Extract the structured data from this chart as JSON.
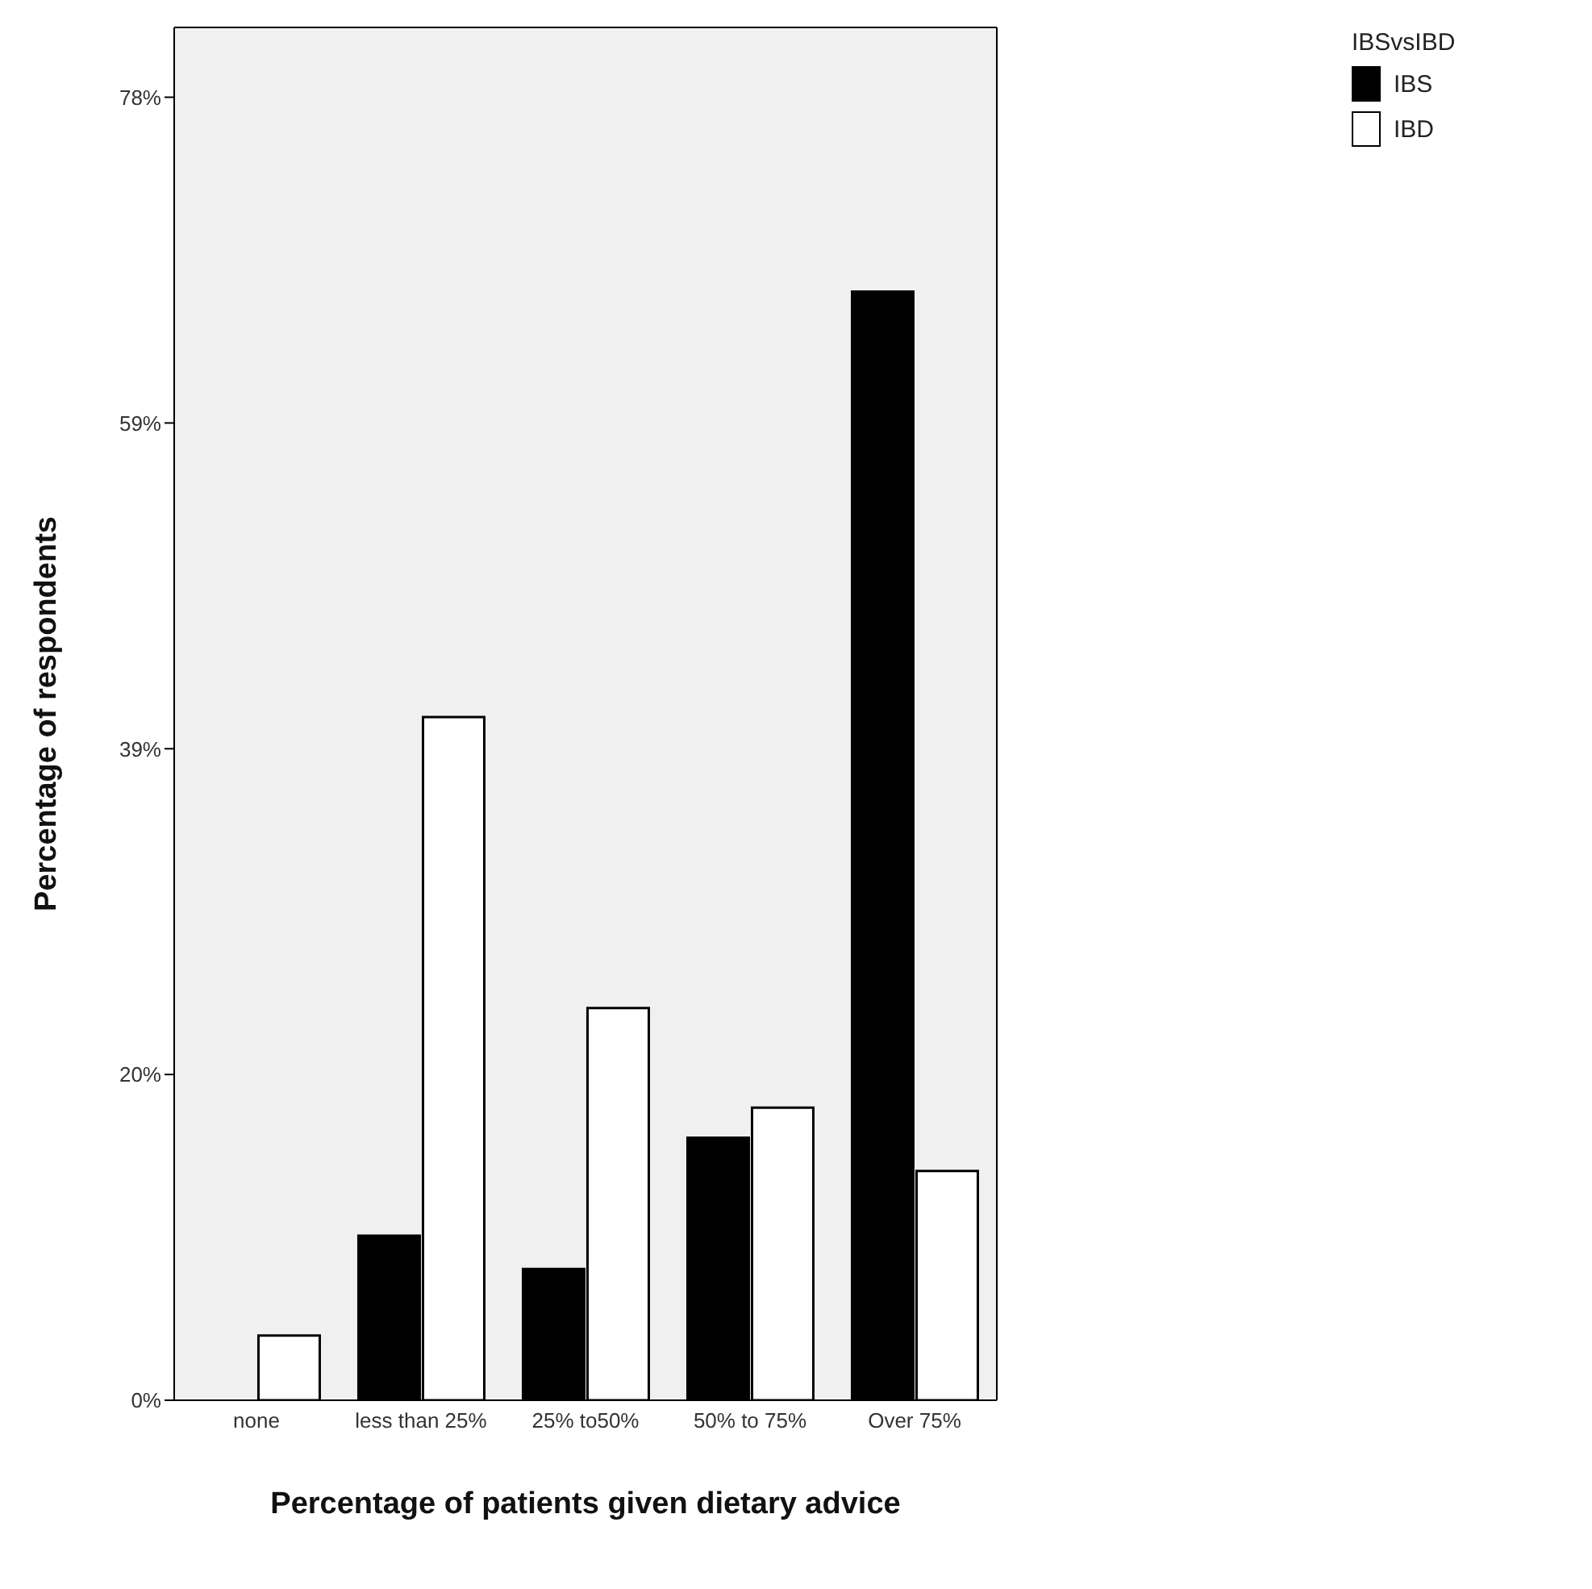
{
  "chart_data": {
    "type": "bar",
    "xlabel": "Percentage of patients given dietary advice",
    "ylabel": "Percentage of respondents",
    "legend_title": "IBSvsIBD",
    "categories": [
      "none",
      "less than 25%",
      "25% to50%",
      "50% to 75%",
      "Over 75%"
    ],
    "series": [
      {
        "name": "IBS",
        "color": "#000000",
        "values": [
          0,
          9.9,
          7.9,
          15.8,
          66.7
        ]
      },
      {
        "name": "IBD",
        "color": "#ffffff",
        "values": [
          3.9,
          41.1,
          23.6,
          17.6,
          13.8
        ]
      }
    ],
    "ylim": [
      0,
      82.6
    ],
    "yticks": [
      {
        "value": 0,
        "label": "0%"
      },
      {
        "value": 19.6,
        "label": "20%"
      },
      {
        "value": 39.2,
        "label": "39%"
      },
      {
        "value": 58.8,
        "label": "59%"
      },
      {
        "value": 78.4,
        "label": "78%"
      }
    ],
    "legend": "top right"
  }
}
